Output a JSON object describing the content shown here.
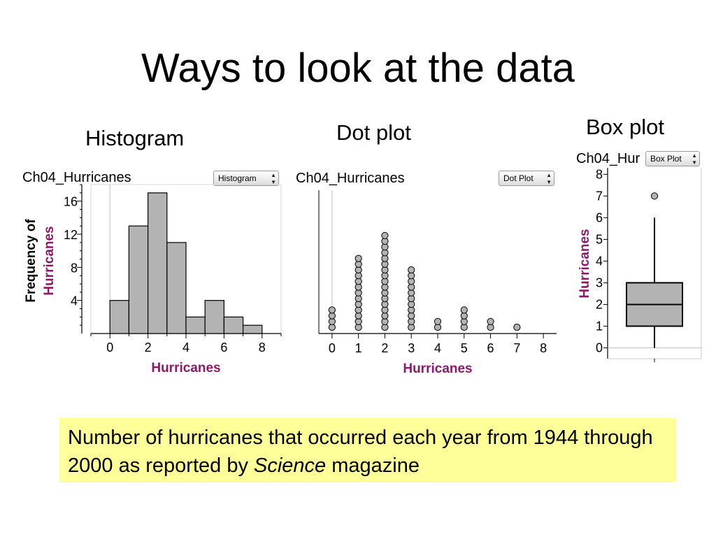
{
  "slide": {
    "title": "Ways to look at the data",
    "caption": {
      "before": "Number of hurricanes that occurred each year from 1944 through 2000 as reported by ",
      "italic": "Science",
      "after": " magazine"
    },
    "background": "#ffffff",
    "caption_background": "#ffff99"
  },
  "panels": {
    "histogram": {
      "label": "Histogram",
      "dataset": "Ch04_Hurricanes",
      "popup": "Histogram"
    },
    "dotplot": {
      "label": "Dot plot",
      "dataset": "Ch04_Hurricanes",
      "popup": "Dot Plot"
    },
    "boxplot": {
      "label": "Box plot",
      "dataset": "Ch04_Hur",
      "popup": "Box Plot"
    }
  },
  "chart_data": [
    {
      "type": "bar",
      "chart": "histogram",
      "bin_width": 1,
      "bins": [
        {
          "start": 0,
          "end": 1,
          "count": 4
        },
        {
          "start": 1,
          "end": 2,
          "count": 13
        },
        {
          "start": 2,
          "end": 3,
          "count": 17
        },
        {
          "start": 3,
          "end": 4,
          "count": 11
        },
        {
          "start": 4,
          "end": 5,
          "count": 2
        },
        {
          "start": 5,
          "end": 6,
          "count": 4
        },
        {
          "start": 6,
          "end": 7,
          "count": 2
        },
        {
          "start": 7,
          "end": 8,
          "count": 1
        }
      ],
      "xlabel": "Hurricanes",
      "ylabel_line1": "Frequency of",
      "ylabel_line2": "Hurricanes",
      "xticks": [
        "0",
        "2",
        "4",
        "6",
        "8"
      ],
      "yticks": [
        "4",
        "8",
        "12",
        "16"
      ],
      "xlim": [
        -1,
        9
      ],
      "ylim": [
        0,
        18
      ],
      "bar_color": "#b3b3b3"
    },
    {
      "type": "scatter",
      "chart": "dotplot",
      "x": [
        0,
        1,
        2,
        3,
        4,
        5,
        6,
        7
      ],
      "counts": [
        4,
        13,
        17,
        11,
        2,
        4,
        2,
        1
      ],
      "xlabel": "Hurricanes",
      "xticks": [
        "0",
        "1",
        "2",
        "3",
        "4",
        "5",
        "6",
        "7",
        "8"
      ],
      "xlim": [
        -0.5,
        8.5
      ],
      "dot_color": "#b3b3b3"
    },
    {
      "type": "box",
      "chart": "boxplot",
      "min": 0,
      "q1": 1,
      "median": 2,
      "q3": 3,
      "whisker_high": 6,
      "outliers": [
        7
      ],
      "ylabel": "Hurricanes",
      "yticks": [
        "0",
        "1",
        "2",
        "3",
        "4",
        "5",
        "6",
        "7",
        "8"
      ],
      "ylim": [
        -0.5,
        8.3
      ],
      "box_color": "#b3b3b3"
    }
  ]
}
